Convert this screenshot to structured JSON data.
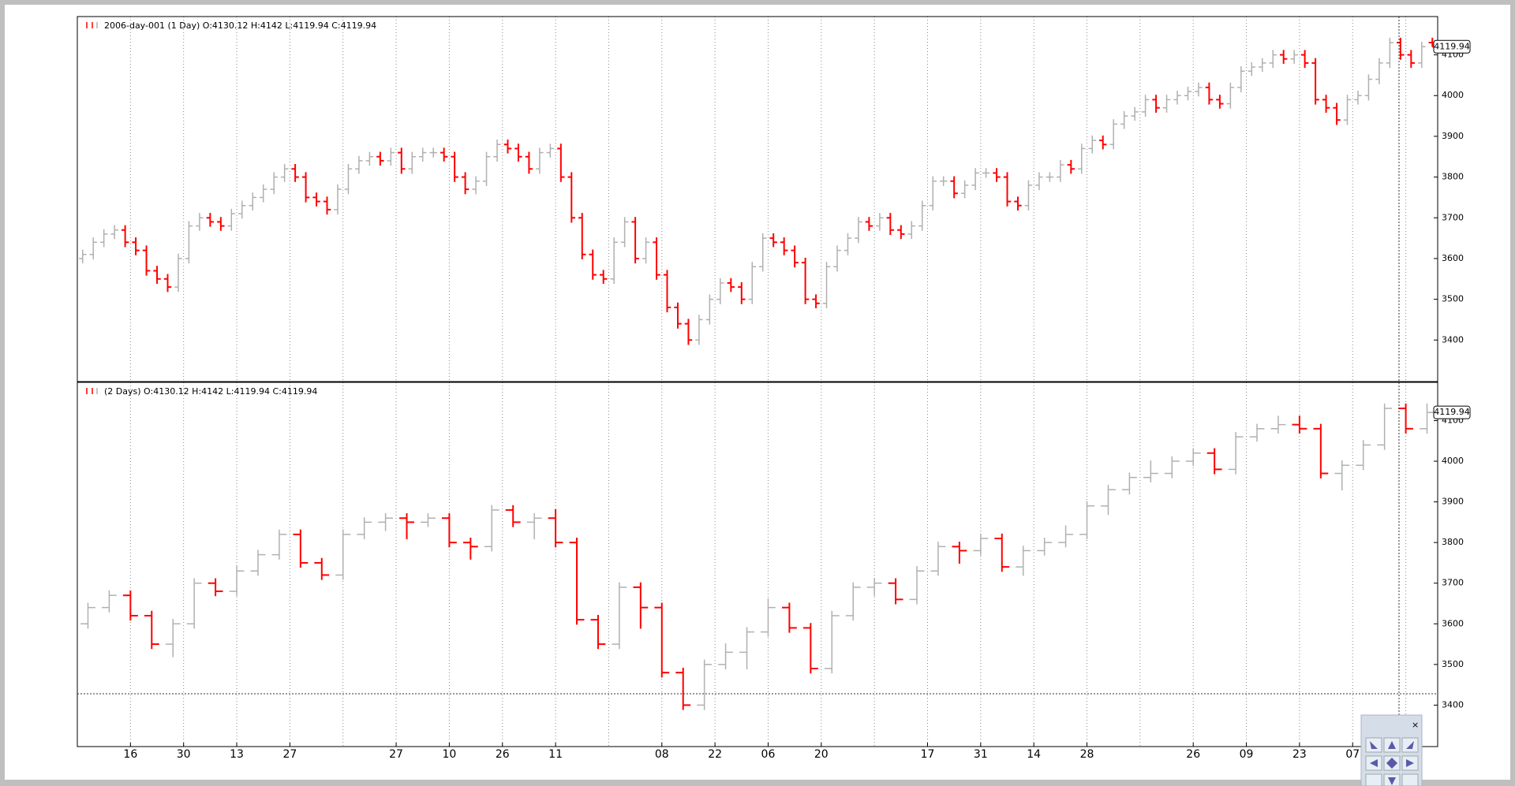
{
  "chart_data": [
    {
      "type": "ohlc",
      "title": "2006-day-001 (1 Day) O:4130.12 H:4142 L:4119.94 C:4119.94",
      "up_color": "#b0b0b0",
      "down_color": "#ff0000",
      "xlim": [
        0,
        128
      ],
      "ylim": [
        3298,
        4194
      ],
      "yticks": [
        3400,
        3500,
        3600,
        3700,
        3800,
        3900,
        4000,
        4100
      ],
      "xgrid": [
        5,
        10,
        15,
        20,
        25,
        30,
        35,
        40,
        45,
        50,
        55,
        60,
        65,
        70,
        75,
        80,
        85,
        90,
        95,
        100,
        105,
        110,
        115,
        120,
        125
      ],
      "last_price": 4119.94,
      "open": [
        3600,
        3610,
        3640,
        3660,
        3670,
        3640,
        3620,
        3570,
        3550,
        3530,
        3600,
        3680,
        3700,
        3690,
        3680,
        3710,
        3730,
        3750,
        3770,
        3800,
        3820,
        3800,
        3750,
        3740,
        3720,
        3770,
        3820,
        3840,
        3850,
        3840,
        3860,
        3820,
        3850,
        3860,
        3860,
        3850,
        3800,
        3770,
        3790,
        3850,
        3880,
        3870,
        3850,
        3820,
        3860,
        3870,
        3800,
        3700,
        3610,
        3560,
        3550,
        3640,
        3690,
        3600,
        3640,
        3560,
        3480,
        3440,
        3400,
        3450,
        3500,
        3540,
        3530,
        3500,
        3580,
        3650,
        3640,
        3620,
        3590,
        3500,
        3490,
        3580,
        3620,
        3650,
        3690,
        3680,
        3700,
        3670,
        3660,
        3680,
        3730,
        3790,
        3790,
        3760,
        3780,
        3810,
        3810,
        3800,
        3740,
        3730,
        3780,
        3800,
        3800,
        3830,
        3820,
        3870,
        3890,
        3880,
        3930,
        3950,
        3960,
        3990,
        3970,
        3990,
        4000,
        4010,
        4020,
        3990,
        3980,
        4020,
        4060,
        4070,
        4080,
        4100,
        4090,
        4100,
        4080,
        3990,
        3970,
        3940,
        3990,
        4000,
        4040,
        4080,
        4130,
        4100,
        4080,
        4130.12
      ],
      "high": [
        3622,
        3652,
        3672,
        3682,
        3682,
        3652,
        3632,
        3582,
        3562,
        3612,
        3692,
        3712,
        3712,
        3702,
        3722,
        3742,
        3762,
        3782,
        3812,
        3832,
        3832,
        3812,
        3762,
        3752,
        3782,
        3832,
        3852,
        3862,
        3862,
        3872,
        3872,
        3862,
        3872,
        3872,
        3872,
        3862,
        3812,
        3802,
        3862,
        3892,
        3892,
        3882,
        3862,
        3872,
        3882,
        3882,
        3812,
        3712,
        3622,
        3572,
        3652,
        3702,
        3702,
        3652,
        3652,
        3572,
        3492,
        3452,
        3462,
        3512,
        3552,
        3552,
        3542,
        3592,
        3662,
        3662,
        3652,
        3632,
        3602,
        3512,
        3592,
        3632,
        3662,
        3702,
        3702,
        3712,
        3712,
        3682,
        3692,
        3742,
        3802,
        3802,
        3802,
        3792,
        3822,
        3822,
        3822,
        3812,
        3752,
        3792,
        3812,
        3812,
        3842,
        3842,
        3882,
        3902,
        3902,
        3942,
        3962,
        3972,
        4002,
        4002,
        4002,
        4012,
        4022,
        4032,
        4032,
        4002,
        4032,
        4072,
        4082,
        4092,
        4112,
        4112,
        4112,
        4112,
        4092,
        4002,
        3982,
        4002,
        4012,
        4052,
        4092,
        4142,
        4142,
        4112,
        4132,
        4142
      ],
      "low": [
        3588,
        3598,
        3628,
        3648,
        3628,
        3608,
        3558,
        3538,
        3518,
        3518,
        3588,
        3668,
        3678,
        3668,
        3668,
        3698,
        3718,
        3738,
        3758,
        3788,
        3788,
        3738,
        3728,
        3708,
        3708,
        3758,
        3808,
        3828,
        3828,
        3828,
        3808,
        3808,
        3838,
        3848,
        3838,
        3788,
        3758,
        3758,
        3778,
        3838,
        3858,
        3838,
        3808,
        3808,
        3848,
        3788,
        3688,
        3598,
        3548,
        3538,
        3538,
        3628,
        3588,
        3588,
        3548,
        3468,
        3428,
        3388,
        3388,
        3438,
        3488,
        3518,
        3488,
        3488,
        3568,
        3628,
        3608,
        3578,
        3488,
        3478,
        3478,
        3568,
        3608,
        3638,
        3668,
        3668,
        3658,
        3648,
        3648,
        3668,
        3718,
        3778,
        3748,
        3748,
        3768,
        3798,
        3788,
        3728,
        3718,
        3718,
        3768,
        3788,
        3788,
        3808,
        3808,
        3858,
        3868,
        3868,
        3918,
        3938,
        3948,
        3958,
        3958,
        3978,
        3988,
        3998,
        3978,
        3968,
        3968,
        4008,
        4048,
        4058,
        4068,
        4078,
        4078,
        4068,
        3978,
        3958,
        3928,
        3928,
        3978,
        3988,
        4028,
        4068,
        4088,
        4068,
        4068,
        4119.94
      ],
      "close": [
        3610,
        3640,
        3660,
        3670,
        3640,
        3620,
        3570,
        3550,
        3530,
        3600,
        3680,
        3700,
        3690,
        3680,
        3710,
        3730,
        3750,
        3770,
        3800,
        3820,
        3800,
        3750,
        3740,
        3720,
        3770,
        3820,
        3840,
        3850,
        3840,
        3860,
        3820,
        3850,
        3860,
        3860,
        3850,
        3800,
        3770,
        3790,
        3850,
        3880,
        3870,
        3850,
        3820,
        3860,
        3870,
        3800,
        3700,
        3610,
        3560,
        3550,
        3640,
        3690,
        3600,
        3640,
        3560,
        3480,
        3440,
        3400,
        3450,
        3500,
        3540,
        3530,
        3500,
        3580,
        3650,
        3640,
        3620,
        3590,
        3500,
        3490,
        3580,
        3620,
        3650,
        3690,
        3680,
        3700,
        3670,
        3660,
        3680,
        3730,
        3790,
        3790,
        3760,
        3780,
        3810,
        3810,
        3800,
        3740,
        3730,
        3780,
        3800,
        3800,
        3830,
        3820,
        3870,
        3890,
        3880,
        3930,
        3950,
        3960,
        3990,
        3970,
        3990,
        4000,
        4010,
        4020,
        3990,
        3980,
        4020,
        4060,
        4070,
        4080,
        4100,
        4090,
        4100,
        4080,
        3990,
        3970,
        3940,
        3990,
        4000,
        4040,
        4080,
        4130,
        4100,
        4080,
        4120,
        4119.94
      ]
    },
    {
      "type": "ohlc",
      "title": "(2 Days) O:4130.12 H:4142 L:4119.94 C:4119.94",
      "up_color": "#b0b0b0",
      "down_color": "#ff0000",
      "xlim": [
        0,
        128
      ],
      "ylim": [
        3298,
        4194
      ],
      "yticks": [
        3400,
        3500,
        3600,
        3700,
        3800,
        3900,
        4000,
        4100
      ],
      "xgrid": [
        5,
        10,
        15,
        20,
        25,
        30,
        35,
        40,
        45,
        50,
        55,
        60,
        65,
        70,
        75,
        80,
        85,
        90,
        95,
        100,
        105,
        110,
        115,
        120,
        125
      ],
      "xticks": [
        {
          "value": 5,
          "label": "16"
        },
        {
          "value": 10,
          "label": "30"
        },
        {
          "value": 15,
          "label": "13"
        },
        {
          "value": 20,
          "label": "27"
        },
        {
          "value": 30,
          "label": "27"
        },
        {
          "value": 35,
          "label": "10"
        },
        {
          "value": 40,
          "label": "26"
        },
        {
          "value": 45,
          "label": "11"
        },
        {
          "value": 55,
          "label": "08"
        },
        {
          "value": 60,
          "label": "22"
        },
        {
          "value": 65,
          "label": "06"
        },
        {
          "value": 70,
          "label": "20"
        },
        {
          "value": 80,
          "label": "17"
        },
        {
          "value": 85,
          "label": "31"
        },
        {
          "value": 90,
          "label": "14"
        },
        {
          "value": 95,
          "label": "28"
        },
        {
          "value": 105,
          "label": "26"
        },
        {
          "value": 110,
          "label": "09"
        },
        {
          "value": 115,
          "label": "23"
        },
        {
          "value": 120,
          "label": "07"
        }
      ],
      "last_price": 4119.94,
      "open": [
        3600,
        3640,
        3670,
        3620,
        3550,
        3600,
        3700,
        3680,
        3730,
        3770,
        3820,
        3750,
        3720,
        3820,
        3850,
        3860,
        3850,
        3860,
        3800,
        3790,
        3880,
        3850,
        3860,
        3800,
        3610,
        3550,
        3690,
        3640,
        3480,
        3400,
        3500,
        3530,
        3580,
        3640,
        3590,
        3490,
        3620,
        3690,
        3700,
        3660,
        3730,
        3790,
        3780,
        3810,
        3740,
        3780,
        3800,
        3820,
        3890,
        3930,
        3960,
        3970,
        4000,
        4020,
        3980,
        4060,
        4080,
        4090,
        4080,
        3970,
        3990,
        4040,
        4130,
        4080
      ],
      "high": [
        3652,
        3682,
        3682,
        3632,
        3612,
        3712,
        3712,
        3742,
        3782,
        3832,
        3832,
        3762,
        3832,
        3862,
        3872,
        3872,
        3872,
        3872,
        3812,
        3892,
        3892,
        3872,
        3882,
        3812,
        3622,
        3702,
        3702,
        3652,
        3492,
        3512,
        3552,
        3592,
        3662,
        3652,
        3602,
        3632,
        3702,
        3712,
        3712,
        3742,
        3802,
        3802,
        3822,
        3822,
        3792,
        3812,
        3842,
        3902,
        3942,
        3972,
        4002,
        4012,
        4032,
        4032,
        4072,
        4092,
        4112,
        4112,
        4092,
        4002,
        4052,
        4142,
        4142,
        4142
      ],
      "low": [
        3588,
        3628,
        3608,
        3538,
        3518,
        3588,
        3668,
        3668,
        3718,
        3758,
        3738,
        3708,
        3708,
        3808,
        3828,
        3808,
        3838,
        3788,
        3758,
        3778,
        3838,
        3808,
        3788,
        3598,
        3538,
        3538,
        3588,
        3468,
        3388,
        3388,
        3488,
        3488,
        3568,
        3578,
        3478,
        3478,
        3608,
        3668,
        3648,
        3648,
        3718,
        3748,
        3768,
        3728,
        3718,
        3768,
        3788,
        3808,
        3868,
        3918,
        3948,
        3958,
        3988,
        3968,
        3968,
        4048,
        4068,
        4068,
        3958,
        3928,
        3978,
        4028,
        4068,
        4068
      ],
      "close": [
        3640,
        3670,
        3620,
        3550,
        3600,
        3700,
        3680,
        3730,
        3770,
        3820,
        3750,
        3720,
        3820,
        3850,
        3860,
        3850,
        3860,
        3800,
        3790,
        3880,
        3850,
        3860,
        3800,
        3610,
        3550,
        3690,
        3640,
        3480,
        3400,
        3500,
        3530,
        3580,
        3640,
        3590,
        3490,
        3620,
        3690,
        3700,
        3660,
        3730,
        3790,
        3780,
        3810,
        3740,
        3780,
        3800,
        3820,
        3890,
        3930,
        3960,
        3970,
        4000,
        4020,
        3980,
        4060,
        4080,
        4090,
        4080,
        3970,
        3990,
        4040,
        4130,
        4080,
        4119.94
      ]
    }
  ]
}
